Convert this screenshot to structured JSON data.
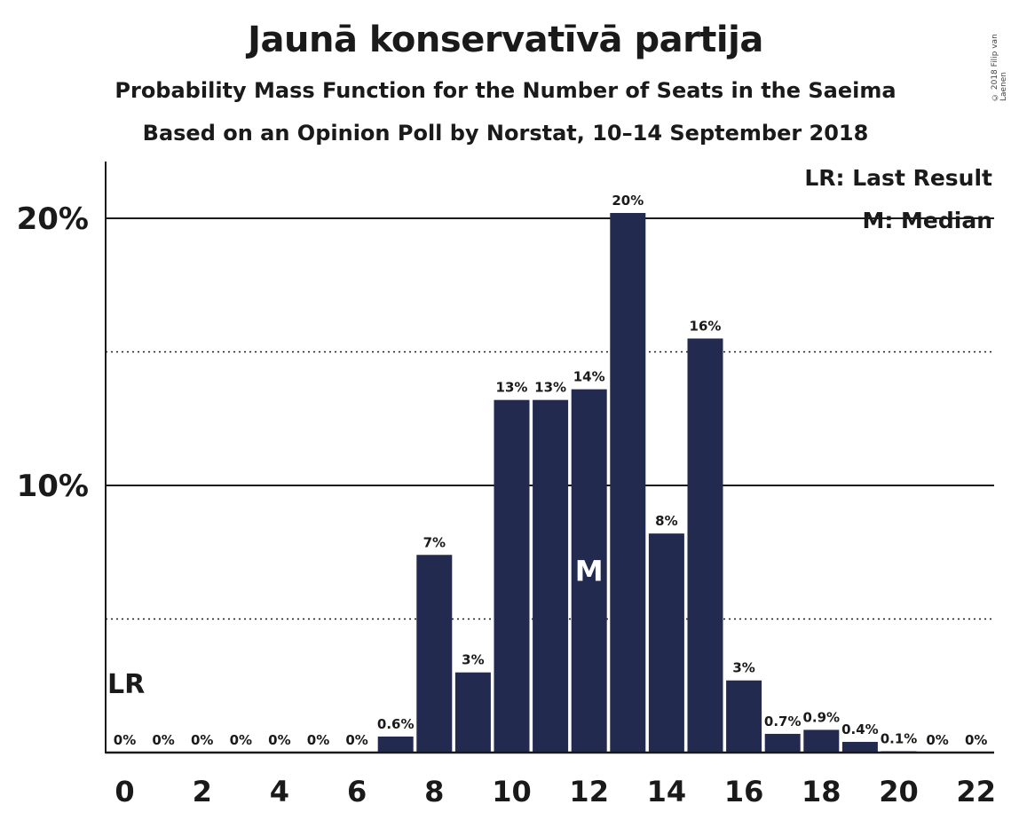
{
  "title": "Jaunā konservatīvā partija",
  "subtitle1": "Probability Mass Function for the Number of Seats in the Saeima",
  "subtitle2": "Based on an Opinion Poll by Norstat, 10–14 September 2018",
  "copyright": "© 2018 Filip van Laenen",
  "legend": {
    "lr": "LR: Last Result",
    "m": "M: Median"
  },
  "markers": {
    "lr_text": "LR",
    "lr_seats": 0,
    "median_text": "M",
    "median_seats": 12
  },
  "colors": {
    "bar": "#222a4f",
    "text": "#1a1a1a"
  },
  "chart_data": {
    "type": "bar",
    "x": [
      0,
      1,
      2,
      3,
      4,
      5,
      6,
      7,
      8,
      9,
      10,
      11,
      12,
      13,
      14,
      15,
      16,
      17,
      18,
      19,
      20,
      21,
      22
    ],
    "values": [
      0,
      0,
      0,
      0,
      0,
      0,
      0,
      0.6,
      7.4,
      3.0,
      13.2,
      13.2,
      13.6,
      20.2,
      8.2,
      15.5,
      2.7,
      0.7,
      0.85,
      0.4,
      0.05,
      0,
      0
    ],
    "labels": [
      "0%",
      "0%",
      "0%",
      "0%",
      "0%",
      "0%",
      "0%",
      "0.6%",
      "7%",
      "3%",
      "13%",
      "13%",
      "14%",
      "20%",
      "8%",
      "16%",
      "3%",
      "0.7%",
      "0.9%",
      "0.4%",
      "0.1%",
      "0%",
      "0%"
    ],
    "xtick_labels": [
      "0",
      "2",
      "4",
      "6",
      "8",
      "10",
      "12",
      "14",
      "16",
      "18",
      "20",
      "22"
    ],
    "xtick_values": [
      0,
      2,
      4,
      6,
      8,
      10,
      12,
      14,
      16,
      18,
      20,
      22
    ],
    "ytick_labels": [
      "10%",
      "20%"
    ],
    "ytick_values": [
      10,
      20
    ],
    "minor_gridlines": [
      5,
      15
    ],
    "ylim": [
      0,
      22
    ],
    "xlabel": "",
    "ylabel": ""
  }
}
